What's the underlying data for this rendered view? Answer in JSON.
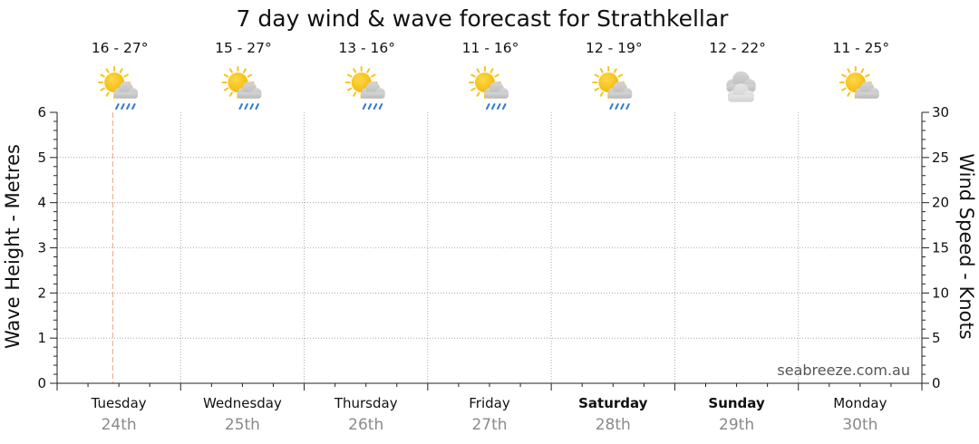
{
  "chart_data": {
    "type": "line",
    "title": "7 day wind & wave forecast for Strathkellar",
    "ylabel_left": "Wave Height - Metres",
    "ylabel_right": "Wind Speed - Knots",
    "ylim_left": [
      0,
      6
    ],
    "ylim_right": [
      0,
      30
    ],
    "yticks_left": [
      "0",
      "1",
      "2",
      "3",
      "4",
      "5",
      "6"
    ],
    "yticks_right": [
      "0",
      "5",
      "10",
      "15",
      "20",
      "25",
      "30"
    ],
    "grid": true,
    "watermark": "seabreeze.com.au",
    "current_time_marker_day_index": 0,
    "days": [
      {
        "name": "Tuesday",
        "date": "24th",
        "temp": "16 - 27°",
        "icon": "sun-cloud-rain-icon",
        "bold": false
      },
      {
        "name": "Wednesday",
        "date": "25th",
        "temp": "15 - 27°",
        "icon": "sun-cloud-rain-icon",
        "bold": false
      },
      {
        "name": "Thursday",
        "date": "26th",
        "temp": "13 - 16°",
        "icon": "sun-cloud-rain-icon",
        "bold": false
      },
      {
        "name": "Friday",
        "date": "27th",
        "temp": "11 - 16°",
        "icon": "sun-cloud-rain-icon",
        "bold": false
      },
      {
        "name": "Saturday",
        "date": "28th",
        "temp": "12 - 19°",
        "icon": "sun-cloud-rain-icon",
        "bold": true
      },
      {
        "name": "Sunday",
        "date": "29th",
        "temp": "12 - 22°",
        "icon": "cloudy-icon",
        "bold": true
      },
      {
        "name": "Monday",
        "date": "30th",
        "temp": "11 - 25°",
        "icon": "partly-cloudy-icon",
        "bold": false
      }
    ],
    "series": []
  },
  "colors": {
    "sun": "#f7c31a",
    "cloud": "#c8c8c8",
    "rain": "#2f7bd8",
    "grid": "#9a9a9a",
    "marker": "#f0a080"
  }
}
